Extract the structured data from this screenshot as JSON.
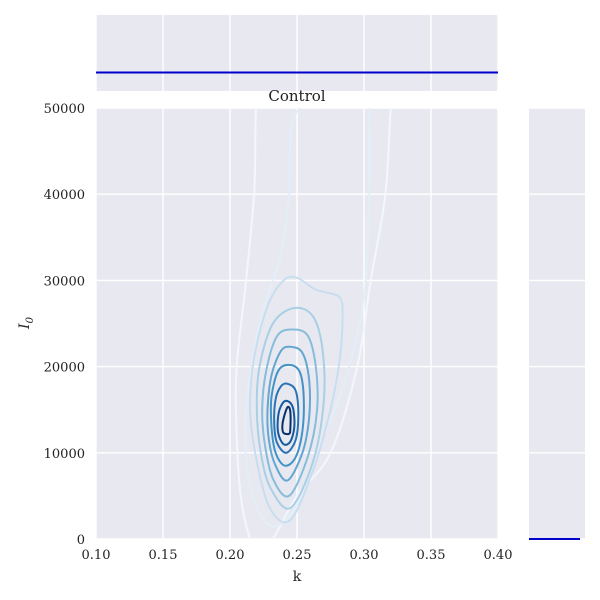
{
  "chart_data": {
    "type": "contour",
    "title": "Control",
    "xlabel": "k",
    "ylabel": "I",
    "ylabel_subscript": "0",
    "xlim": [
      0.1,
      0.4
    ],
    "ylim": [
      0,
      50000
    ],
    "xticks": [
      0.1,
      0.15,
      0.2,
      0.25,
      0.3,
      0.35,
      0.4
    ],
    "xtick_labels": [
      "0.10",
      "0.15",
      "0.20",
      "0.25",
      "0.30",
      "0.35",
      "0.40"
    ],
    "yticks": [
      0,
      10000,
      20000,
      30000,
      40000,
      50000
    ],
    "ytick_labels": [
      "0",
      "10000",
      "20000",
      "30000",
      "40000",
      "50000"
    ],
    "grid": true,
    "background": "#e8e9f0",
    "colormap": "Blues",
    "marginal_line_color": "#0000cc",
    "contour_levels": [
      {
        "color": "#f3f7fd",
        "points": [
          [
            0.225,
            56000
          ],
          [
            0.218,
            40000
          ],
          [
            0.212,
            30000
          ],
          [
            0.205,
            20000
          ],
          [
            0.205,
            12000
          ],
          [
            0.208,
            5000
          ],
          [
            0.215,
            0
          ],
          [
            0.222,
            -1500
          ],
          [
            0.232,
            0
          ],
          [
            0.25,
            5000
          ],
          [
            0.275,
            10000
          ],
          [
            0.295,
            20000
          ],
          [
            0.305,
            30000
          ],
          [
            0.316,
            40000
          ],
          [
            0.32,
            50000
          ],
          [
            0.325,
            56000
          ],
          [
            0.27,
            58000
          ]
        ]
      },
      {
        "color": "#e3eef8",
        "points": [
          [
            0.248,
            49000
          ],
          [
            0.244,
            40000
          ],
          [
            0.238,
            33000
          ],
          [
            0.222,
            25000
          ],
          [
            0.212,
            15000
          ],
          [
            0.213,
            8000
          ],
          [
            0.222,
            3000
          ],
          [
            0.235,
            1500
          ],
          [
            0.25,
            4000
          ],
          [
            0.265,
            10000
          ],
          [
            0.285,
            18000
          ],
          [
            0.298,
            26000
          ],
          [
            0.303,
            35000
          ],
          [
            0.304,
            50000
          ],
          [
            0.306,
            54000
          ],
          [
            0.275,
            52000
          ]
        ]
      },
      {
        "color": "#c9ddf0",
        "points": [
          [
            0.25,
            30300
          ],
          [
            0.263,
            29000
          ],
          [
            0.272,
            28600
          ],
          [
            0.282,
            28000
          ],
          [
            0.284,
            26000
          ],
          [
            0.282,
            21000
          ],
          [
            0.275,
            15000
          ],
          [
            0.262,
            8000
          ],
          [
            0.245,
            2200
          ],
          [
            0.23,
            3500
          ],
          [
            0.22,
            9000
          ],
          [
            0.215,
            15000
          ],
          [
            0.218,
            21000
          ],
          [
            0.228,
            27000
          ],
          [
            0.24,
            30000
          ]
        ]
      },
      {
        "color": "#a9cfe5",
        "points": [
          [
            0.248,
            26800
          ],
          [
            0.262,
            25800
          ],
          [
            0.269,
            22000
          ],
          [
            0.27,
            16000
          ],
          [
            0.262,
            9000
          ],
          [
            0.245,
            3600
          ],
          [
            0.23,
            6000
          ],
          [
            0.223,
            10000
          ],
          [
            0.22,
            15000
          ],
          [
            0.222,
            20000
          ],
          [
            0.232,
            25000
          ]
        ]
      },
      {
        "color": "#86bcdc",
        "points": [
          [
            0.246,
            24300
          ],
          [
            0.258,
            23600
          ],
          [
            0.264,
            20000
          ],
          [
            0.265,
            15000
          ],
          [
            0.258,
            9500
          ],
          [
            0.244,
            5000
          ],
          [
            0.232,
            7000
          ],
          [
            0.226,
            11000
          ],
          [
            0.224,
            15000
          ],
          [
            0.227,
            19500
          ],
          [
            0.235,
            23500
          ]
        ]
      },
      {
        "color": "#63a6d2",
        "points": [
          [
            0.245,
            22300
          ],
          [
            0.254,
            21600
          ],
          [
            0.259,
            18500
          ],
          [
            0.259,
            14000
          ],
          [
            0.254,
            10000
          ],
          [
            0.243,
            6800
          ],
          [
            0.234,
            8500
          ],
          [
            0.229,
            11500
          ],
          [
            0.228,
            15000
          ],
          [
            0.231,
            19000
          ],
          [
            0.238,
            21800
          ]
        ]
      },
      {
        "color": "#4292c6",
        "points": [
          [
            0.244,
            20200
          ],
          [
            0.252,
            19400
          ],
          [
            0.255,
            16500
          ],
          [
            0.254,
            12500
          ],
          [
            0.249,
            9500
          ],
          [
            0.241,
            8500
          ],
          [
            0.234,
            10000
          ],
          [
            0.231,
            13000
          ],
          [
            0.231,
            16500
          ],
          [
            0.236,
            19500
          ]
        ]
      },
      {
        "color": "#2a74b5",
        "points": [
          [
            0.243,
            18000
          ],
          [
            0.249,
            17200
          ],
          [
            0.251,
            14500
          ],
          [
            0.249,
            11500
          ],
          [
            0.242,
            10000
          ],
          [
            0.235,
            11200
          ],
          [
            0.233,
            13500
          ],
          [
            0.234,
            16200
          ],
          [
            0.238,
            17700
          ]
        ]
      },
      {
        "color": "#155a9e",
        "points": [
          [
            0.243,
            16000
          ],
          [
            0.247,
            15200
          ],
          [
            0.248,
            13000
          ],
          [
            0.245,
            11300
          ],
          [
            0.24,
            11000
          ],
          [
            0.236,
            12300
          ],
          [
            0.236,
            14300
          ],
          [
            0.239,
            15700
          ]
        ]
      },
      {
        "color": "#08306b",
        "points": [
          [
            0.243,
            15300
          ],
          [
            0.245,
            14800
          ],
          [
            0.245,
            12700
          ],
          [
            0.244,
            12200
          ],
          [
            0.24,
            12300
          ],
          [
            0.239,
            13000
          ],
          [
            0.24,
            14000
          ]
        ]
      }
    ]
  }
}
